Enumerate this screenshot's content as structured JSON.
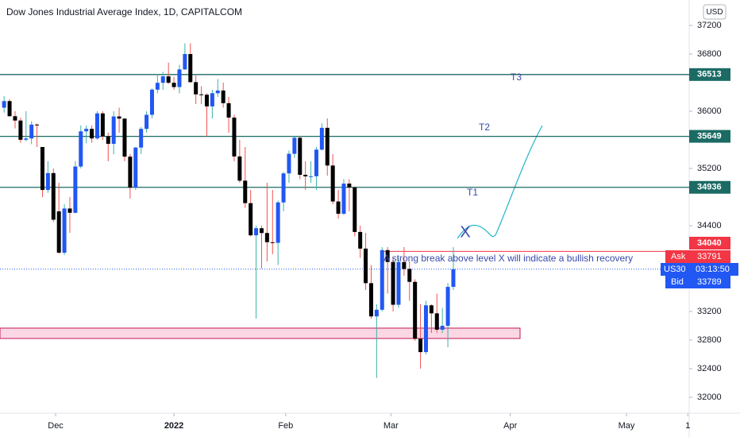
{
  "chart_data": {
    "type": "candlestick",
    "title": "Dow Jones Industrial Average Index, 1D, CAPITALCOM",
    "currency": "USD",
    "up_color": "#2157f3",
    "up_wick": "#3bb3a7",
    "down_color": "#000000",
    "down_wick": "#ef5350",
    "open": [
      36050,
      36142,
      35931,
      35870,
      35601,
      35619,
      35813,
      35500,
      34899,
      35135,
      34600,
      34022,
      34640,
      34580,
      35227,
      35719,
      35754,
      35620,
      35970,
      35650,
      35544,
      35927,
      35897,
      35365,
      34932,
      35492,
      35753,
      35950,
      36302,
      36398,
      36488,
      36398,
      36338,
      36585,
      36800,
      36407,
      36236,
      36231,
      36068,
      36252,
      36290,
      36113,
      35911,
      35368,
      35029,
      34715,
      34265,
      34364,
      34297,
      34168,
      34160,
      34725,
      35131,
      35405,
      35629,
      35111,
      35089,
      35091,
      35463,
      35768,
      35241,
      34738,
      34566,
      34988,
      34934,
      34312,
      34079,
      33596,
      33131,
      33224,
      34058,
      33892,
      33294,
      33891,
      33795,
      33614,
      32817,
      32632,
      33286,
      33174,
      32945,
      33000,
      33544
    ],
    "high": [
      36210,
      36170,
      36000,
      35910,
      36000,
      35860,
      35830,
      35500,
      35300,
      35200,
      35000,
      34700,
      34800,
      35300,
      35800,
      35800,
      35800,
      36000,
      36000,
      35700,
      36000,
      36050,
      35900,
      35400,
      35500,
      35780,
      36000,
      36320,
      36520,
      36550,
      36680,
      36480,
      36650,
      36950,
      36950,
      36500,
      36350,
      36250,
      36300,
      36450,
      36400,
      36200,
      35950,
      35600,
      35500,
      34900,
      34400,
      34400,
      35000,
      34900,
      34750,
      35150,
      35450,
      35650,
      35650,
      35300,
      35300,
      35500,
      35830,
      35900,
      35400,
      34900,
      35050,
      35050,
      34950,
      34400,
      34300,
      33850,
      33300,
      34100,
      34100,
      33950,
      33950,
      34100,
      33900,
      33650,
      33300,
      33350,
      33300,
      33450,
      33250,
      33600,
      34100
    ],
    "low": [
      35980,
      35920,
      35760,
      35560,
      35580,
      35540,
      35500,
      34800,
      34860,
      34450,
      34006,
      33990,
      34300,
      34570,
      35200,
      35550,
      35560,
      35600,
      35600,
      35300,
      35400,
      35700,
      35300,
      34780,
      34900,
      35400,
      35700,
      35900,
      36250,
      36300,
      36380,
      36300,
      36250,
      36580,
      36400,
      36100,
      36100,
      35650,
      35900,
      36200,
      36050,
      35700,
      35300,
      35000,
      34650,
      34250,
      33100,
      33800,
      33900,
      34000,
      33850,
      34600,
      35000,
      35350,
      35050,
      34900,
      35000,
      34900,
      35450,
      35100,
      34700,
      34500,
      34550,
      34600,
      34250,
      33950,
      33500,
      33100,
      32270,
      33200,
      33450,
      33200,
      33250,
      33700,
      33350,
      32790,
      32400,
      32600,
      32900,
      32900,
      32900,
      32700,
      33500
    ],
    "close": [
      36142,
      35931,
      35870,
      35601,
      35619,
      35813,
      35804,
      34899,
      35135,
      34483,
      34022,
      34640,
      34580,
      35227,
      35719,
      35754,
      35620,
      35970,
      35650,
      35544,
      35927,
      35897,
      35365,
      34932,
      35492,
      35753,
      35950,
      36302,
      36398,
      36488,
      36398,
      36338,
      36585,
      36800,
      36407,
      36236,
      36231,
      36068,
      36252,
      36290,
      36113,
      35911,
      35368,
      35029,
      34715,
      34265,
      34364,
      34297,
      34168,
      34160,
      34725,
      35131,
      35405,
      35629,
      35111,
      35089,
      35091,
      35463,
      35768,
      35241,
      34738,
      34566,
      34988,
      34934,
      34312,
      34079,
      33596,
      33131,
      33224,
      34058,
      33892,
      33294,
      33891,
      33795,
      33614,
      32817,
      32632,
      33286,
      33174,
      32945,
      33000,
      33544,
      33791
    ],
    "xlim": [
      -0.75,
      125.05
    ],
    "xticks": [
      {
        "value": 9.4,
        "label": "Dec"
      },
      {
        "value": 31.0,
        "label": "2022"
      },
      {
        "value": 51.4,
        "label": "Feb"
      },
      {
        "value": 70.6,
        "label": "Mar"
      },
      {
        "value": 92.4,
        "label": "Apr"
      },
      {
        "value": 113.6,
        "label": "May"
      },
      {
        "value": 124.8,
        "label": "1"
      }
    ],
    "ylim": [
      31800,
      37400
    ],
    "yticks": [
      37200,
      36800,
      36000,
      35200,
      34400,
      33200,
      32800,
      32400,
      32000
    ],
    "levels": [
      {
        "value": 36513,
        "label": "T3"
      },
      {
        "value": 35649,
        "label": "T2"
      },
      {
        "value": 34936,
        "label": "T1"
      }
    ],
    "level_color": "#1b6b64",
    "resistance": 34040,
    "resistance_color": "#f23645",
    "zone": [
      32822,
      32967
    ],
    "x_mark": "X",
    "annotation": "A strong break above level X will indicate a bullish recovery",
    "ask_label": "Ask",
    "ask": 33791,
    "symbol": "US30",
    "countdown": "03:13:50",
    "bid_label": "Bid",
    "bid": 33789
  }
}
